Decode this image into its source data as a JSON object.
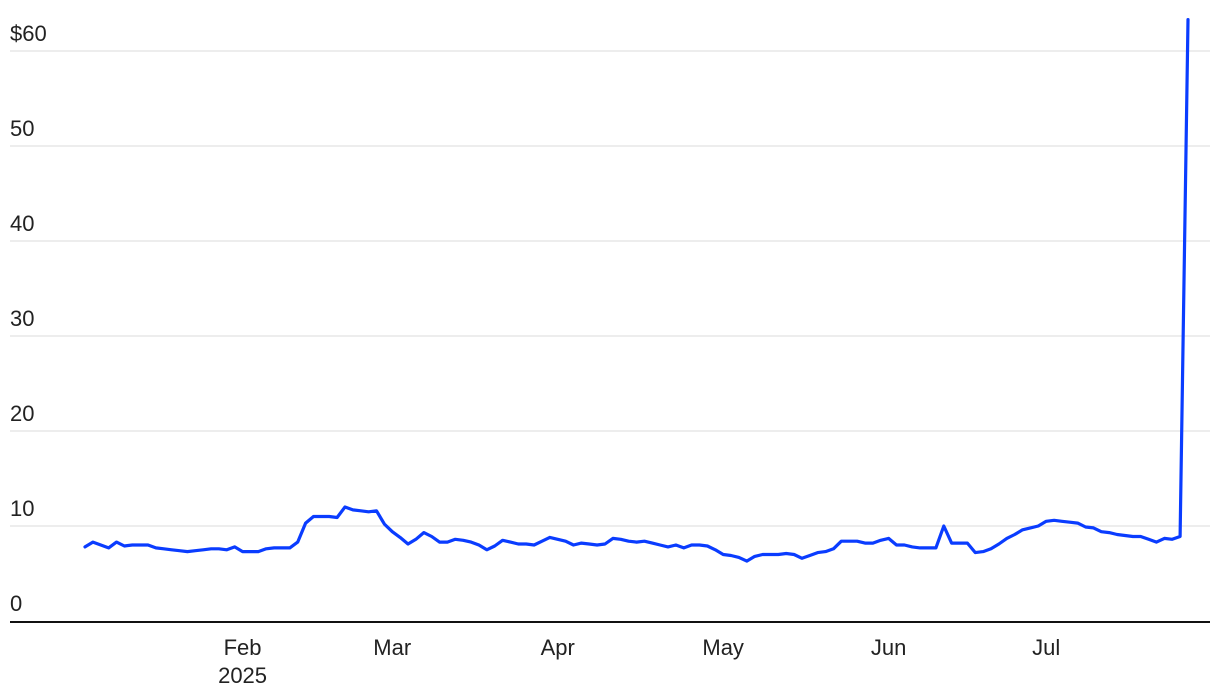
{
  "chart_data": {
    "type": "line",
    "color": "#0a3cff",
    "ylim": [
      0,
      65
    ],
    "yticks": [
      0,
      10,
      20,
      30,
      40,
      50,
      {
        "value": 60,
        "label": "$60"
      }
    ],
    "grid": true,
    "categories": [
      null,
      null,
      null,
      null,
      null,
      null,
      null,
      null,
      null,
      null,
      null,
      null,
      null,
      null,
      null,
      null,
      null,
      null,
      null,
      null,
      "Feb\n2025",
      null,
      null,
      null,
      null,
      null,
      null,
      null,
      null,
      null,
      null,
      null,
      null,
      null,
      null,
      null,
      null,
      null,
      null,
      "Mar",
      null,
      null,
      null,
      null,
      null,
      null,
      null,
      null,
      null,
      null,
      null,
      null,
      null,
      null,
      null,
      null,
      null,
      null,
      null,
      null,
      "Apr",
      null,
      null,
      null,
      null,
      null,
      null,
      null,
      null,
      null,
      null,
      null,
      null,
      null,
      null,
      null,
      null,
      null,
      null,
      null,
      null,
      "May",
      null,
      null,
      null,
      null,
      null,
      null,
      null,
      null,
      null,
      null,
      null,
      null,
      null,
      null,
      null,
      null,
      null,
      null,
      null,
      null,
      "Jun",
      null,
      null,
      null,
      null,
      null,
      null,
      null,
      null,
      null,
      null,
      null,
      null,
      null,
      null,
      null,
      null,
      null,
      null,
      null,
      "Jul",
      null,
      null,
      null,
      null,
      null,
      null,
      null,
      null,
      null,
      null,
      null,
      null,
      null,
      null,
      null,
      null,
      null,
      null
    ],
    "values": [
      7.8,
      8.3,
      8.0,
      7.7,
      8.3,
      7.9,
      8.0,
      8.0,
      8.0,
      7.7,
      7.6,
      7.5,
      7.4,
      7.3,
      7.4,
      7.5,
      7.6,
      7.6,
      7.5,
      7.8,
      7.3,
      7.3,
      7.3,
      7.6,
      7.7,
      7.7,
      7.7,
      8.3,
      10.3,
      11.0,
      11.0,
      11.0,
      10.9,
      12.0,
      11.7,
      11.6,
      11.5,
      11.6,
      10.2,
      9.4,
      8.8,
      8.1,
      8.6,
      9.3,
      8.9,
      8.3,
      8.3,
      8.6,
      8.5,
      8.3,
      8.0,
      7.5,
      7.9,
      8.5,
      8.3,
      8.1,
      8.1,
      8.0,
      8.4,
      8.8,
      8.6,
      8.4,
      8.0,
      8.2,
      8.1,
      8.0,
      8.1,
      8.7,
      8.6,
      8.4,
      8.3,
      8.4,
      8.2,
      8.0,
      7.8,
      8.0,
      7.7,
      8.0,
      8.0,
      7.9,
      7.5,
      7.0,
      6.9,
      6.7,
      6.3,
      6.8,
      7.0,
      7.0,
      7.0,
      7.1,
      7.0,
      6.6,
      6.9,
      7.2,
      7.3,
      7.6,
      8.4,
      8.4,
      8.4,
      8.2,
      8.2,
      8.5,
      8.7,
      8.0,
      8.0,
      7.8,
      7.7,
      7.7,
      7.7,
      10.0,
      8.2,
      8.2,
      8.2,
      7.2,
      7.3,
      7.6,
      8.1,
      8.7,
      9.1,
      9.6,
      9.8,
      10.0,
      10.5,
      10.6,
      10.5,
      10.4,
      10.3,
      9.9,
      9.8,
      9.4,
      9.3,
      9.1,
      9.0,
      8.9,
      8.9,
      8.6,
      8.3,
      8.7,
      8.6,
      8.9,
      63.3
    ]
  }
}
